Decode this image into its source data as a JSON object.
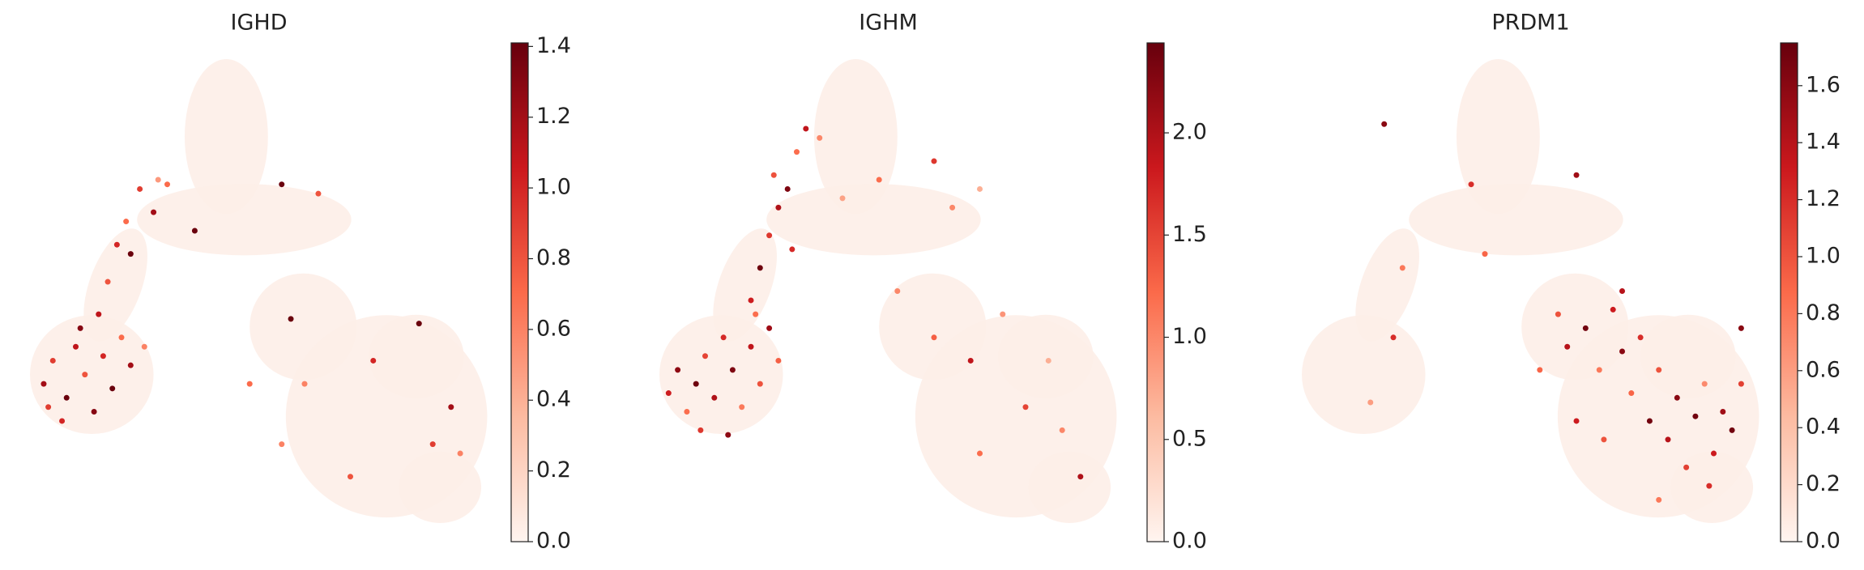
{
  "chart_data": [
    {
      "type": "scatter",
      "title": "IGHD",
      "xlim": [
        0,
        100
      ],
      "ylim": [
        0,
        100
      ],
      "colors": [
        "#fff5f0",
        "#fcbba1",
        "#fb6a4a",
        "#cb181d",
        "#67000d"
      ],
      "clim": [
        0,
        1.41
      ],
      "cticks": [
        {
          "value": 0,
          "label": "0.0"
        },
        {
          "value": 0.2,
          "label": "0.2"
        },
        {
          "value": 0.4,
          "label": "0.4"
        },
        {
          "value": 0.6,
          "label": "0.6"
        },
        {
          "value": 0.8,
          "label": "0.8"
        },
        {
          "value": 1,
          "label": "1.0"
        },
        {
          "value": 1.2,
          "label": "1.2"
        },
        {
          "value": 1.4,
          "label": "1.4"
        }
      ],
      "x": [
        3,
        5,
        8,
        10,
        12,
        14,
        16,
        18,
        20,
        7,
        22,
        25,
        11,
        4,
        15,
        17,
        19,
        21,
        22,
        24,
        27,
        28,
        30,
        36,
        55,
        63,
        57,
        60,
        75,
        85,
        92,
        88,
        94,
        70,
        55,
        48
      ],
      "y": [
        30,
        35,
        27,
        38,
        32,
        24,
        36,
        29,
        40,
        22,
        34,
        38,
        42,
        25,
        45,
        52,
        60,
        65,
        58,
        72,
        67,
        74,
        73,
        63,
        73,
        71,
        44,
        30,
        35,
        43,
        25,
        17,
        15,
        10,
        17,
        30
      ],
      "values": [
        1.2,
        0.9,
        1.4,
        1.1,
        0.8,
        1.3,
        1.0,
        1.4,
        0.7,
        1.0,
        1.2,
        0.6,
        1.3,
        0.9,
        1.1,
        0.8,
        1.0,
        0.7,
        1.4,
        0.9,
        1.2,
        0.5,
        0.7,
        1.4,
        1.4,
        0.8,
        1.4,
        0.6,
        1.0,
        1.4,
        1.2,
        0.9,
        0.6,
        0.8,
        0.6,
        0.7
      ]
    },
    {
      "type": "scatter",
      "title": "IGHM",
      "xlim": [
        0,
        100
      ],
      "ylim": [
        0,
        100
      ],
      "colors": [
        "#fff5f0",
        "#fcbba1",
        "#fb6a4a",
        "#cb181d",
        "#67000d"
      ],
      "clim": [
        0,
        2.44
      ],
      "cticks": [
        {
          "value": 0,
          "label": "0.0"
        },
        {
          "value": 0.5,
          "label": "0.5"
        },
        {
          "value": 1,
          "label": "1.0"
        },
        {
          "value": 1.5,
          "label": "1.5"
        },
        {
          "value": 2,
          "label": "2.0"
        }
      ],
      "x": [
        2,
        4,
        6,
        8,
        10,
        12,
        14,
        16,
        18,
        20,
        22,
        24,
        26,
        9,
        15,
        20,
        22,
        24,
        26,
        25,
        28,
        30,
        32,
        35,
        29,
        21,
        40,
        48,
        60,
        64,
        70,
        52,
        60,
        68,
        75,
        80,
        88,
        92,
        70,
        85
      ],
      "y": [
        28,
        33,
        24,
        30,
        36,
        27,
        40,
        33,
        25,
        38,
        30,
        42,
        35,
        20,
        19,
        48,
        55,
        62,
        68,
        75,
        72,
        80,
        85,
        83,
        59,
        45,
        70,
        74,
        78,
        68,
        72,
        50,
        40,
        35,
        45,
        25,
        20,
        10,
        15,
        35
      ],
      "values": [
        1.8,
        2.2,
        1.2,
        2.4,
        1.5,
        2.0,
        1.7,
        2.3,
        1.1,
        1.9,
        1.4,
        2.1,
        1.3,
        1.6,
        2.2,
        1.8,
        2.4,
        1.6,
        2.0,
        1.4,
        2.3,
        1.2,
        1.9,
        1.0,
        1.7,
        1.2,
        0.8,
        1.2,
        1.6,
        1.0,
        0.7,
        1.0,
        1.3,
        1.9,
        0.9,
        1.5,
        1.0,
        2.0,
        1.2,
        0.7
      ]
    },
    {
      "type": "scatter",
      "title": "PRDM1",
      "xlim": [
        0,
        100
      ],
      "ylim": [
        0,
        100
      ],
      "colors": [
        "#fff5f0",
        "#fcbba1",
        "#fb6a4a",
        "#cb181d",
        "#67000d"
      ],
      "clim": [
        0,
        1.75
      ],
      "cticks": [
        {
          "value": 0,
          "label": "0.0"
        },
        {
          "value": 0.2,
          "label": "0.2"
        },
        {
          "value": 0.4,
          "label": "0.4"
        },
        {
          "value": 0.6,
          "label": "0.6"
        },
        {
          "value": 0.8,
          "label": "0.8"
        },
        {
          "value": 1,
          "label": "1.0"
        },
        {
          "value": 1.2,
          "label": "1.2"
        },
        {
          "value": 1.4,
          "label": "1.4"
        },
        {
          "value": 1.6,
          "label": "1.6"
        }
      ],
      "x": [
        56,
        58,
        62,
        65,
        68,
        70,
        72,
        74,
        76,
        78,
        80,
        82,
        84,
        86,
        88,
        90,
        92,
        94,
        96,
        89,
        78,
        66,
        60,
        52,
        96,
        70,
        20,
        22,
        37,
        40,
        60,
        18,
        15
      ],
      "y": [
        45,
        38,
        42,
        33,
        46,
        37,
        28,
        40,
        22,
        33,
        18,
        27,
        12,
        23,
        30,
        15,
        24,
        20,
        30,
        8,
        5,
        18,
        22,
        33,
        42,
        50,
        40,
        55,
        73,
        58,
        75,
        86,
        26
      ],
      "values": [
        1.0,
        1.4,
        1.7,
        0.8,
        1.3,
        1.6,
        0.9,
        1.2,
        1.7,
        1.0,
        1.4,
        1.6,
        1.1,
        1.7,
        0.7,
        1.3,
        1.5,
        1.7,
        1.1,
        1.2,
        0.8,
        1.0,
        1.3,
        0.9,
        1.6,
        1.4,
        1.2,
        0.8,
        1.2,
        0.9,
        1.5,
        1.6,
        0.6
      ]
    }
  ]
}
